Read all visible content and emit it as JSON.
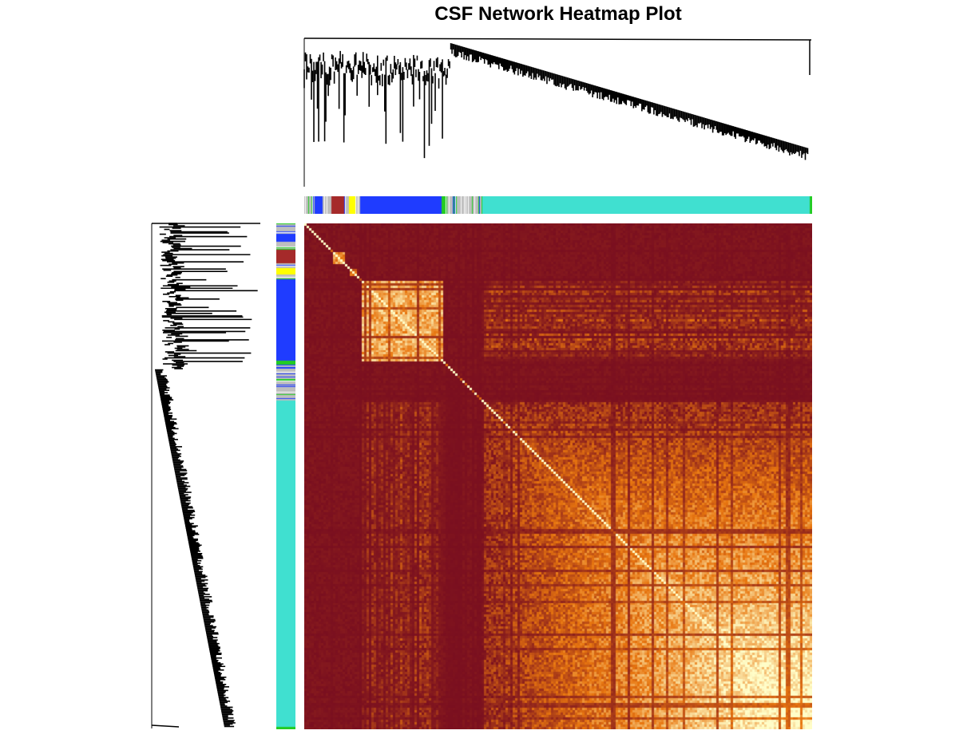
{
  "title": "CSF Network Heatmap Plot",
  "chart_data": {
    "type": "heatmap",
    "title": "CSF Network Heatmap Plot",
    "description_kind": "TOM (topological overlap) heatmap with gene dendrograms and module color bars",
    "color_scale": {
      "low_overlap": "#7a0f1f",
      "mid": "#e8760f",
      "high_overlap": "#fffdc8"
    },
    "modules": [
      {
        "name": "grey",
        "color": "#bebebe",
        "start": 0.0,
        "end": 0.02
      },
      {
        "name": "blue",
        "color": "#1f3cff",
        "start": 0.02,
        "end": 0.035
      },
      {
        "name": "grey",
        "color": "#bebebe",
        "start": 0.035,
        "end": 0.052
      },
      {
        "name": "brown",
        "color": "#a52a2a",
        "start": 0.052,
        "end": 0.078
      },
      {
        "name": "grey",
        "color": "#bebebe",
        "start": 0.078,
        "end": 0.088
      },
      {
        "name": "yellow",
        "color": "#ffff00",
        "start": 0.088,
        "end": 0.1
      },
      {
        "name": "grey",
        "color": "#bebebe",
        "start": 0.1,
        "end": 0.11
      },
      {
        "name": "blue",
        "color": "#1f3cff",
        "start": 0.11,
        "end": 0.27
      },
      {
        "name": "green",
        "color": "#22cc22",
        "start": 0.27,
        "end": 0.278
      },
      {
        "name": "grey",
        "color": "#bebebe",
        "start": 0.278,
        "end": 0.35
      },
      {
        "name": "turquoise",
        "color": "#40e0d0",
        "start": 0.35,
        "end": 0.995
      },
      {
        "name": "green",
        "color": "#22cc22",
        "start": 0.995,
        "end": 1.0
      }
    ],
    "blocks": [
      {
        "module": "brown",
        "start": 0.052,
        "end": 0.078,
        "strength": 0.8
      },
      {
        "module": "yellow",
        "start": 0.088,
        "end": 0.1,
        "strength": 0.6
      },
      {
        "module": "blue",
        "start": 0.11,
        "end": 0.27,
        "strength": 0.9
      },
      {
        "module": "turquoise",
        "start": 0.35,
        "end": 1.0,
        "strength": 1.0
      }
    ]
  }
}
